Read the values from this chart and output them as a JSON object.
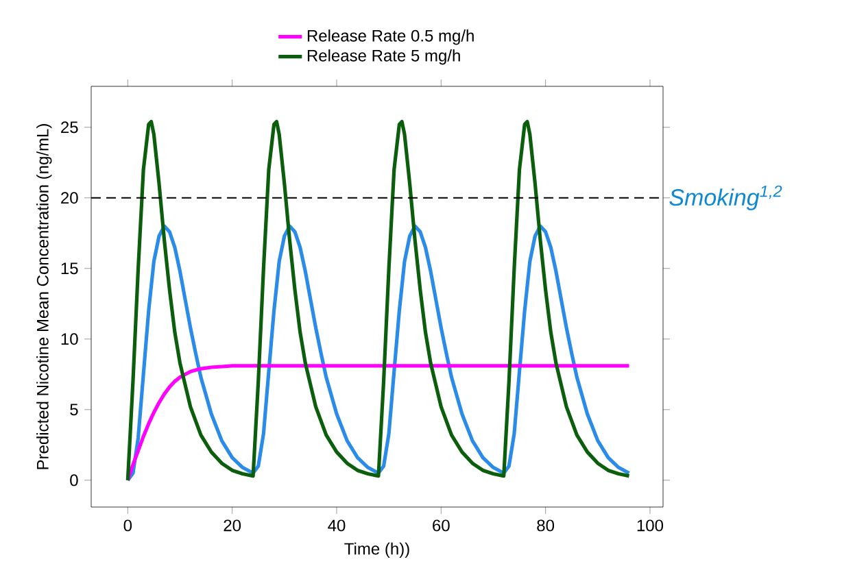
{
  "chart_data": {
    "type": "line",
    "xlabel": "Time (h))",
    "ylabel": "Predicted Nicotine Mean Concentration (ng/mL)",
    "xlim": [
      -7,
      102.5
    ],
    "ylim": [
      -1.9,
      27.9
    ],
    "xticks": [
      0,
      20,
      40,
      60,
      80,
      100
    ],
    "yticks": [
      0,
      5,
      10,
      15,
      20,
      25
    ],
    "grid": false,
    "legend": "top",
    "marker": "none",
    "line_style": "solid",
    "ref_lines": [
      {
        "axis": "y",
        "value": 20,
        "label": "Smoking$^{1,2}$",
        "color": "#000000",
        "line_style": "dashed"
      }
    ],
    "series": [
      {
        "color": "#2a8ce8",
        "x": [
          0,
          1,
          2,
          3,
          4,
          5,
          6,
          7,
          8,
          9,
          10,
          11,
          12,
          13,
          14,
          16,
          18,
          20,
          22,
          24,
          25,
          26,
          27,
          28,
          29,
          30,
          31,
          32,
          33,
          34,
          35,
          36,
          37,
          38,
          40,
          42,
          44,
          46,
          48,
          49,
          50,
          51,
          52,
          53,
          54,
          55,
          56,
          57,
          58,
          59,
          60,
          61,
          62,
          64,
          66,
          68,
          70,
          72,
          73,
          74,
          75,
          76,
          77,
          78,
          79,
          80,
          81,
          82,
          83,
          84,
          85,
          86,
          88,
          90,
          92,
          94,
          96
        ],
        "values": [
          0,
          0.5,
          3,
          7.5,
          12,
          15.5,
          17.3,
          18,
          17.6,
          16.5,
          14.8,
          12.8,
          10.8,
          9,
          7.3,
          4.7,
          2.8,
          1.6,
          0.9,
          0.5,
          1,
          3.3,
          7.7,
          12,
          15.5,
          17.3,
          18,
          17.6,
          16.5,
          14.8,
          12.8,
          10.8,
          9,
          7.3,
          4.7,
          2.8,
          1.6,
          0.9,
          0.5,
          1,
          3.3,
          7.7,
          12,
          15.5,
          17.3,
          18,
          17.6,
          16.5,
          14.8,
          12.8,
          10.8,
          9,
          7.3,
          4.7,
          2.8,
          1.6,
          0.9,
          0.5,
          1,
          3.3,
          7.7,
          12,
          15.5,
          17.3,
          18,
          17.6,
          16.5,
          14.8,
          12.8,
          10.8,
          9,
          7.3,
          4.7,
          2.8,
          1.6,
          0.9,
          0.5
        ]
      },
      {
        "name": "Release Rate 0.5 mg/h",
        "color": "#ff00ff",
        "x": [
          0,
          1,
          2,
          3,
          4,
          5,
          6,
          7,
          8,
          9,
          10,
          12,
          14,
          16,
          18,
          20,
          24,
          96
        ],
        "values": [
          0,
          1.1,
          2.1,
          3.1,
          4,
          4.8,
          5.5,
          6.1,
          6.6,
          7,
          7.3,
          7.7,
          7.9,
          8,
          8.05,
          8.1,
          8.1,
          8.1
        ]
      },
      {
        "name": "Release Rate 5 mg/h",
        "color": "#0b5e0b",
        "x": [
          0,
          1,
          2,
          3,
          4,
          4.5,
          5,
          6,
          7,
          8,
          9,
          10,
          12,
          14,
          16,
          18,
          20,
          22,
          24,
          25,
          26,
          27,
          28,
          28.5,
          29,
          30,
          31,
          32,
          33,
          34,
          36,
          38,
          40,
          42,
          44,
          46,
          48,
          49,
          50,
          51,
          52,
          52.5,
          53,
          54,
          55,
          56,
          57,
          58,
          60,
          62,
          64,
          66,
          68,
          70,
          72,
          73,
          74,
          75,
          76,
          76.5,
          77,
          78,
          79,
          80,
          81,
          82,
          84,
          86,
          88,
          90,
          92,
          94,
          96
        ],
        "values": [
          0,
          7,
          15,
          22,
          25.2,
          25.4,
          24.5,
          21,
          17,
          13.5,
          10.5,
          8.3,
          5.2,
          3.2,
          2,
          1.2,
          0.7,
          0.45,
          0.3,
          7,
          15,
          22,
          25.2,
          25.4,
          24.5,
          21,
          17,
          13.5,
          10.5,
          8.3,
          5.2,
          3.2,
          2,
          1.2,
          0.7,
          0.45,
          0.3,
          7,
          15,
          22,
          25.2,
          25.4,
          24.5,
          21,
          17,
          13.5,
          10.5,
          8.3,
          5.2,
          3.2,
          2,
          1.2,
          0.7,
          0.45,
          0.3,
          7,
          15,
          22,
          25.2,
          25.4,
          24.5,
          21,
          17,
          13.5,
          10.5,
          8.3,
          5.2,
          3.2,
          2,
          1.2,
          0.7,
          0.45,
          0.3
        ]
      }
    ]
  }
}
